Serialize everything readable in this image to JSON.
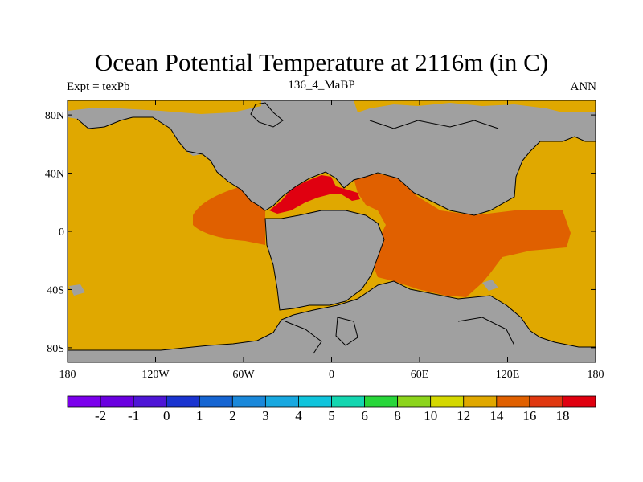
{
  "title": "Ocean Potential Temperature at 2116m (in C)",
  "subtitle_left": "Expt = texPb",
  "subtitle_center": "136_4_MaBP",
  "subtitle_right": "ANN",
  "chart_data": {
    "type": "heatmap",
    "map_type": "global lat-lon field",
    "xlim": [
      -180,
      180
    ],
    "ylim": [
      -90,
      90
    ],
    "x_ticks": [
      "180",
      "120W",
      "60W",
      "0",
      "60E",
      "120E",
      "180"
    ],
    "x_tick_values": [
      -180,
      -120,
      -60,
      0,
      60,
      120,
      180
    ],
    "y_ticks": [
      "80N",
      "40N",
      "0",
      "40S",
      "80S"
    ],
    "y_tick_values": [
      80,
      40,
      0,
      -40,
      -80
    ],
    "land_color": "#a0a0a0",
    "field_levels": [
      {
        "range": "12-14",
        "color": "#e0a800"
      },
      {
        "range": "14-16",
        "color": "#e06000"
      },
      {
        "range": "16-18",
        "color": "#e00010"
      }
    ],
    "colorbar": {
      "labels": [
        "-2",
        "-1",
        "0",
        "1",
        "2",
        "3",
        "4",
        "5",
        "6",
        "8",
        "10",
        "12",
        "14",
        "16",
        "18"
      ],
      "colors": [
        "#7b00ec",
        "#6a00e0",
        "#4e16d6",
        "#1a34d0",
        "#1665d2",
        "#1a88da",
        "#18a8e0",
        "#10c4dc",
        "#14d6b0",
        "#28d63a",
        "#8cd41c",
        "#d4d800",
        "#e0a800",
        "#e06000",
        "#e03810",
        "#e00010"
      ]
    }
  }
}
